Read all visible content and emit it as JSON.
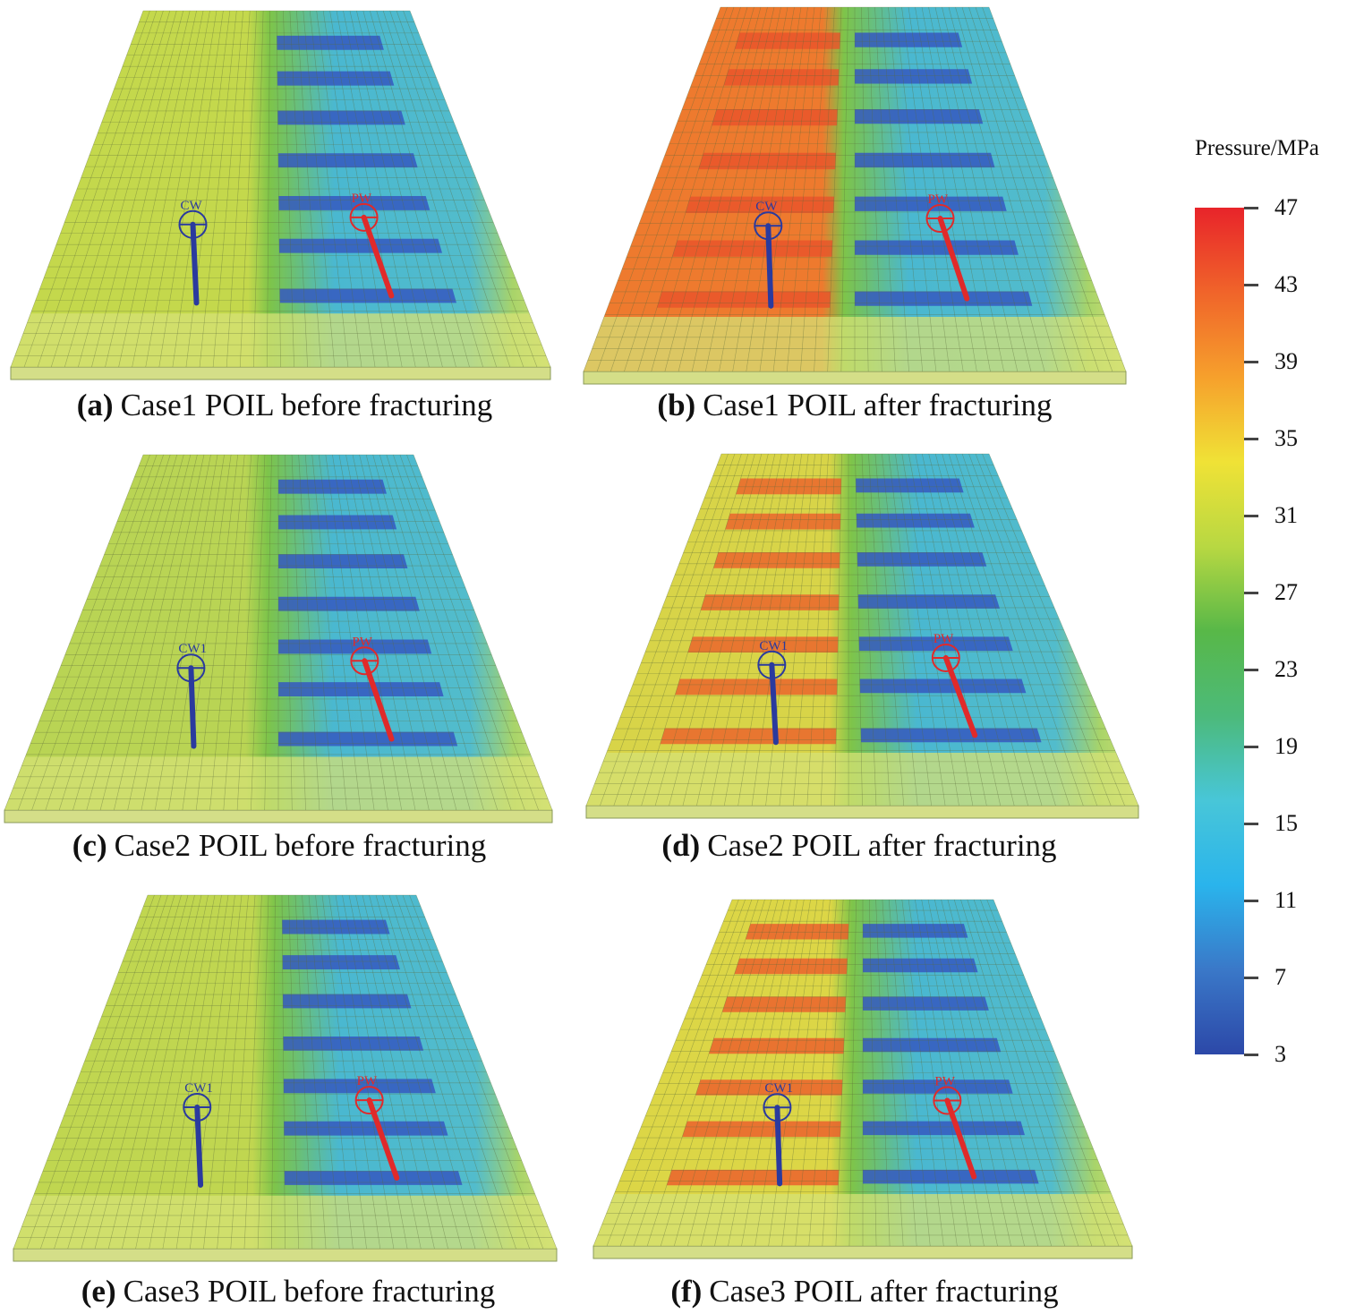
{
  "panels": [
    {
      "id": "a",
      "letter": "(a)",
      "caption": "Case1 POIL before fracturing",
      "injector_label": "CW",
      "producer_label": "PW",
      "left_fill": "#c4d84c",
      "left_band": null
    },
    {
      "id": "b",
      "letter": "(b)",
      "caption": "Case1 POIL after fracturing",
      "injector_label": "CW",
      "producer_label": "PW",
      "left_fill": "#ee7a2e",
      "left_band": "#e8532a"
    },
    {
      "id": "c",
      "letter": "(c)",
      "caption": "Case2 POIL before fracturing",
      "injector_label": "CW1",
      "producer_label": "PW",
      "left_fill": "#b9d454",
      "left_band": null
    },
    {
      "id": "d",
      "letter": "(d)",
      "caption": "Case2 POIL after fracturing",
      "injector_label": "CW1",
      "producer_label": "PW",
      "left_fill": "#d8d448",
      "left_band": "#ec5e2a"
    },
    {
      "id": "e",
      "letter": "(e)",
      "caption": "Case3 POIL before fracturing",
      "injector_label": "CW1",
      "producer_label": "PW",
      "left_fill": "#c0d650",
      "left_band": null
    },
    {
      "id": "f",
      "letter": "(f)",
      "caption": "Case3 POIL after fracturing",
      "injector_label": "CW1",
      "producer_label": "PW",
      "left_fill": "#dcd646",
      "left_band": "#ec5a2a"
    }
  ],
  "colorbar": {
    "title": "Pressure/MPa",
    "min": 3,
    "max": 47,
    "ticks": [
      "47",
      "43",
      "39",
      "35",
      "31",
      "27",
      "23",
      "19",
      "15",
      "11",
      "7",
      "3"
    ],
    "colors": [
      "#e8242a",
      "#f0642a",
      "#f6a02c",
      "#f0e236",
      "#b8d842",
      "#58b848",
      "#4cba7a",
      "#48c6d8",
      "#2ab4ec",
      "#3a78c8",
      "#2c48a8"
    ]
  },
  "colors": {
    "fracture_blue": "#3558c0",
    "injector_well": "#2a3a9e",
    "producer_well": "#e02a2a",
    "grid_line": "#5a6a3a"
  }
}
